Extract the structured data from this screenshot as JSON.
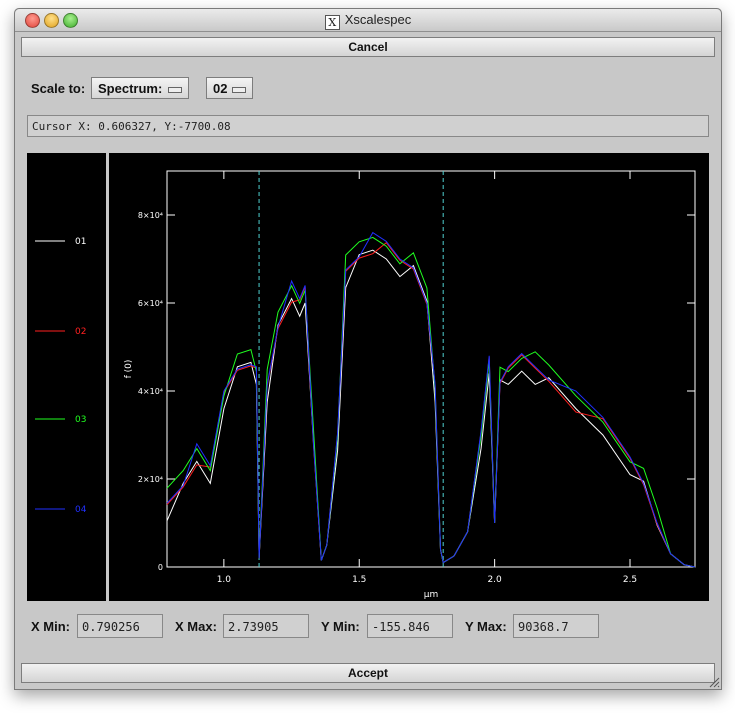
{
  "window": {
    "title": "Xscalespec"
  },
  "buttons": {
    "cancel": "Cancel",
    "accept": "Accept"
  },
  "scale": {
    "label": "Scale to:",
    "mode_value": "Spectrum:",
    "spectrum_value": "02"
  },
  "cursor": {
    "text": "Cursor X: 0.606327, Y:-7700.08"
  },
  "fields": {
    "xmin_label": "X Min:",
    "xmin_value": "0.790256",
    "xmax_label": "X Max:",
    "xmax_value": "2.73905",
    "ymin_label": "Y Min:",
    "ymin_value": "-155.846",
    "ymax_label": "Y Max:",
    "ymax_value": "90368.7"
  },
  "chart_data": {
    "type": "line",
    "xlabel": "μm",
    "ylabel": "f (0)",
    "xlim": [
      0.79,
      2.74
    ],
    "ylim": [
      0,
      90000
    ],
    "xticks": [
      "1.0",
      "1.5",
      "2.0",
      "2.5"
    ],
    "xtick_values": [
      1.0,
      1.5,
      2.0,
      2.5
    ],
    "yticks": [
      "0",
      "2×10⁴",
      "4×10⁴",
      "6×10⁴",
      "8×10⁴"
    ],
    "ytick_values": [
      0,
      20000,
      40000,
      60000,
      80000
    ],
    "vlines": [
      1.13,
      1.81
    ],
    "vline_color": "#4fd0d0",
    "series": [
      {
        "name": "01",
        "color": "#ffffff",
        "offset": -2500
      },
      {
        "name": "02",
        "color": "#ff2020",
        "offset": -800
      },
      {
        "name": "03",
        "color": "#20ff20",
        "offset": 900
      },
      {
        "name": "04",
        "color": "#2030ff",
        "offset": 0
      }
    ],
    "x": [
      0.79,
      0.85,
      0.9,
      0.95,
      1.0,
      1.05,
      1.1,
      1.12,
      1.13,
      1.16,
      1.2,
      1.25,
      1.28,
      1.3,
      1.33,
      1.36,
      1.38,
      1.42,
      1.45,
      1.5,
      1.55,
      1.6,
      1.65,
      1.7,
      1.75,
      1.78,
      1.8,
      1.81,
      1.85,
      1.9,
      1.95,
      1.98,
      2.0,
      2.02,
      2.05,
      2.1,
      2.15,
      2.2,
      2.3,
      2.4,
      2.5,
      2.55,
      2.6,
      2.65,
      2.7,
      2.74
    ],
    "y": [
      15000,
      20000,
      26000,
      22000,
      40000,
      46000,
      48000,
      44000,
      2000,
      42000,
      56000,
      63000,
      60000,
      64000,
      30000,
      1500,
      5000,
      30000,
      68000,
      72000,
      74000,
      73000,
      70000,
      69000,
      62000,
      40000,
      4000,
      1000,
      2500,
      8000,
      30000,
      48000,
      10000,
      44000,
      44000,
      48000,
      46000,
      44000,
      38000,
      33000,
      25000,
      20000,
      12000,
      3000,
      500,
      0
    ]
  }
}
